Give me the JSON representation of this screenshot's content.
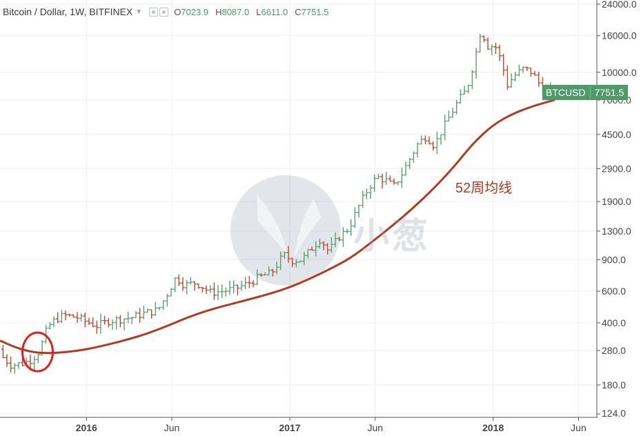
{
  "header": {
    "symbol": "Bitcoin / Dollar, 1W, BITFINEX",
    "open_label": "O",
    "open": "7023.9",
    "high_label": "H",
    "high": "8087.0",
    "low_label": "L",
    "low": "6611.0",
    "close_label": "C",
    "close": "7751.5"
  },
  "price_tag": {
    "ticker": "BTCUSD",
    "value": "7751.5"
  },
  "ma_label": "52周均线",
  "watermark": "小葱",
  "colors": {
    "up": "#5c9e74",
    "down": "#c6452c",
    "ma": "#b23a1e",
    "circle": "#e0201a",
    "tag": "#4e9a6a"
  },
  "chart_data": {
    "type": "candlestick",
    "scale": "log",
    "ylim": [
      124,
      24000
    ],
    "xlim": [
      2015.575,
      2018.51
    ],
    "y_ticks": [
      "24000.0",
      "16000.0",
      "10000.0",
      "7000.0",
      "4500.0",
      "2900.0",
      "1900.0",
      "1300.0",
      "900.0",
      "600.0",
      "400.0",
      "280.0",
      "180.0",
      "124.0"
    ],
    "x_ticks": [
      {
        "label": "2016",
        "x": 2016.0,
        "bold": true
      },
      {
        "label": "Jun",
        "x": 2016.42,
        "bold": false
      },
      {
        "label": "2017",
        "x": 2017.0,
        "bold": true
      },
      {
        "label": "Jun",
        "x": 2017.42,
        "bold": false
      },
      {
        "label": "2018",
        "x": 2018.0,
        "bold": true
      },
      {
        "label": "Jun",
        "x": 2018.42,
        "bold": false
      }
    ],
    "anchors": [
      [
        2015.58,
        285
      ],
      [
        2015.6,
        255
      ],
      [
        2015.64,
        232
      ],
      [
        2015.7,
        238
      ],
      [
        2015.74,
        250
      ],
      [
        2015.78,
        280
      ],
      [
        2015.8,
        330
      ],
      [
        2015.82,
        380
      ],
      [
        2015.86,
        420
      ],
      [
        2015.9,
        440
      ],
      [
        2015.96,
        430
      ],
      [
        2016.0,
        410
      ],
      [
        2016.06,
        385
      ],
      [
        2016.12,
        410
      ],
      [
        2016.18,
        420
      ],
      [
        2016.24,
        430
      ],
      [
        2016.3,
        455
      ],
      [
        2016.36,
        470
      ],
      [
        2016.4,
        560
      ],
      [
        2016.45,
        720
      ],
      [
        2016.49,
        650
      ],
      [
        2016.55,
        670
      ],
      [
        2016.62,
        590
      ],
      [
        2016.68,
        600
      ],
      [
        2016.74,
        620
      ],
      [
        2016.8,
        660
      ],
      [
        2016.86,
        720
      ],
      [
        2016.92,
        760
      ],
      [
        2016.98,
        960
      ],
      [
        2017.02,
        890
      ],
      [
        2017.07,
        900
      ],
      [
        2017.12,
        1050
      ],
      [
        2017.16,
        1180
      ],
      [
        2017.2,
        1000
      ],
      [
        2017.25,
        1200
      ],
      [
        2017.3,
        1350
      ],
      [
        2017.35,
        1800
      ],
      [
        2017.4,
        2300
      ],
      [
        2017.44,
        2600
      ],
      [
        2017.48,
        2500
      ],
      [
        2017.52,
        2300
      ],
      [
        2017.56,
        2700
      ],
      [
        2017.6,
        3300
      ],
      [
        2017.64,
        4000
      ],
      [
        2017.68,
        4400
      ],
      [
        2017.72,
        3900
      ],
      [
        2017.76,
        4800
      ],
      [
        2017.8,
        5800
      ],
      [
        2017.84,
        7000
      ],
      [
        2017.88,
        8000
      ],
      [
        2017.92,
        12000
      ],
      [
        2017.95,
        17500
      ],
      [
        2017.98,
        14000
      ],
      [
        2018.02,
        14000
      ],
      [
        2018.05,
        11500
      ],
      [
        2018.08,
        8500
      ],
      [
        2018.11,
        9500
      ],
      [
        2018.16,
        10500
      ],
      [
        2018.2,
        10000
      ],
      [
        2018.24,
        8500
      ],
      [
        2018.27,
        7800
      ],
      [
        2018.3,
        7751.5
      ]
    ],
    "ma_series": [
      [
        2015.575,
        318
      ],
      [
        2015.65,
        292
      ],
      [
        2015.72,
        276
      ],
      [
        2015.8,
        270
      ],
      [
        2015.9,
        274
      ],
      [
        2016.0,
        284
      ],
      [
        2016.1,
        301
      ],
      [
        2016.2,
        322
      ],
      [
        2016.3,
        348
      ],
      [
        2016.4,
        385
      ],
      [
        2016.5,
        430
      ],
      [
        2016.6,
        470
      ],
      [
        2016.7,
        505
      ],
      [
        2016.8,
        540
      ],
      [
        2016.9,
        580
      ],
      [
        2017.0,
        630
      ],
      [
        2017.1,
        705
      ],
      [
        2017.2,
        800
      ],
      [
        2017.3,
        920
      ],
      [
        2017.4,
        1120
      ],
      [
        2017.5,
        1380
      ],
      [
        2017.6,
        1720
      ],
      [
        2017.7,
        2200
      ],
      [
        2017.8,
        2900
      ],
      [
        2017.9,
        4000
      ],
      [
        2018.0,
        5100
      ],
      [
        2018.1,
        5900
      ],
      [
        2018.2,
        6500
      ],
      [
        2018.3,
        7000
      ]
    ],
    "annotation_circle": {
      "x": 2015.76,
      "y": 275
    }
  }
}
